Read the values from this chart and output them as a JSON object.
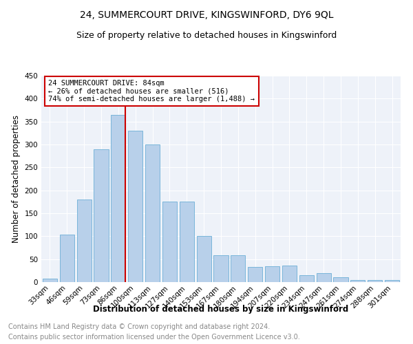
{
  "title": "24, SUMMERCOURT DRIVE, KINGSWINFORD, DY6 9QL",
  "subtitle": "Size of property relative to detached houses in Kingswinford",
  "xlabel": "Distribution of detached houses by size in Kingswinford",
  "ylabel": "Number of detached properties",
  "footer1": "Contains HM Land Registry data © Crown copyright and database right 2024.",
  "footer2": "Contains public sector information licensed under the Open Government Licence v3.0.",
  "categories": [
    "33sqm",
    "46sqm",
    "59sqm",
    "73sqm",
    "86sqm",
    "100sqm",
    "113sqm",
    "127sqm",
    "140sqm",
    "153sqm",
    "167sqm",
    "180sqm",
    "194sqm",
    "207sqm",
    "220sqm",
    "234sqm",
    "247sqm",
    "261sqm",
    "274sqm",
    "288sqm",
    "301sqm"
  ],
  "values": [
    8,
    104,
    180,
    290,
    365,
    330,
    300,
    175,
    175,
    100,
    58,
    58,
    33,
    35,
    36,
    15,
    19,
    10,
    5,
    5,
    5
  ],
  "bar_color": "#b8d0ea",
  "bar_edge_color": "#6aaed6",
  "highlight_bar_index": 4,
  "highlight_line_color": "#cc0000",
  "annotation_text": "24 SUMMERCOURT DRIVE: 84sqm\n← 26% of detached houses are smaller (516)\n74% of semi-detached houses are larger (1,488) →",
  "annotation_box_color": "#ffffff",
  "annotation_box_edge": "#cc0000",
  "ylim": [
    0,
    450
  ],
  "yticks": [
    0,
    50,
    100,
    150,
    200,
    250,
    300,
    350,
    400,
    450
  ],
  "bg_color": "#eef2f9",
  "grid_color": "#ffffff",
  "title_fontsize": 10,
  "subtitle_fontsize": 9,
  "axis_label_fontsize": 8.5,
  "tick_fontsize": 7.5,
  "footer_fontsize": 7
}
